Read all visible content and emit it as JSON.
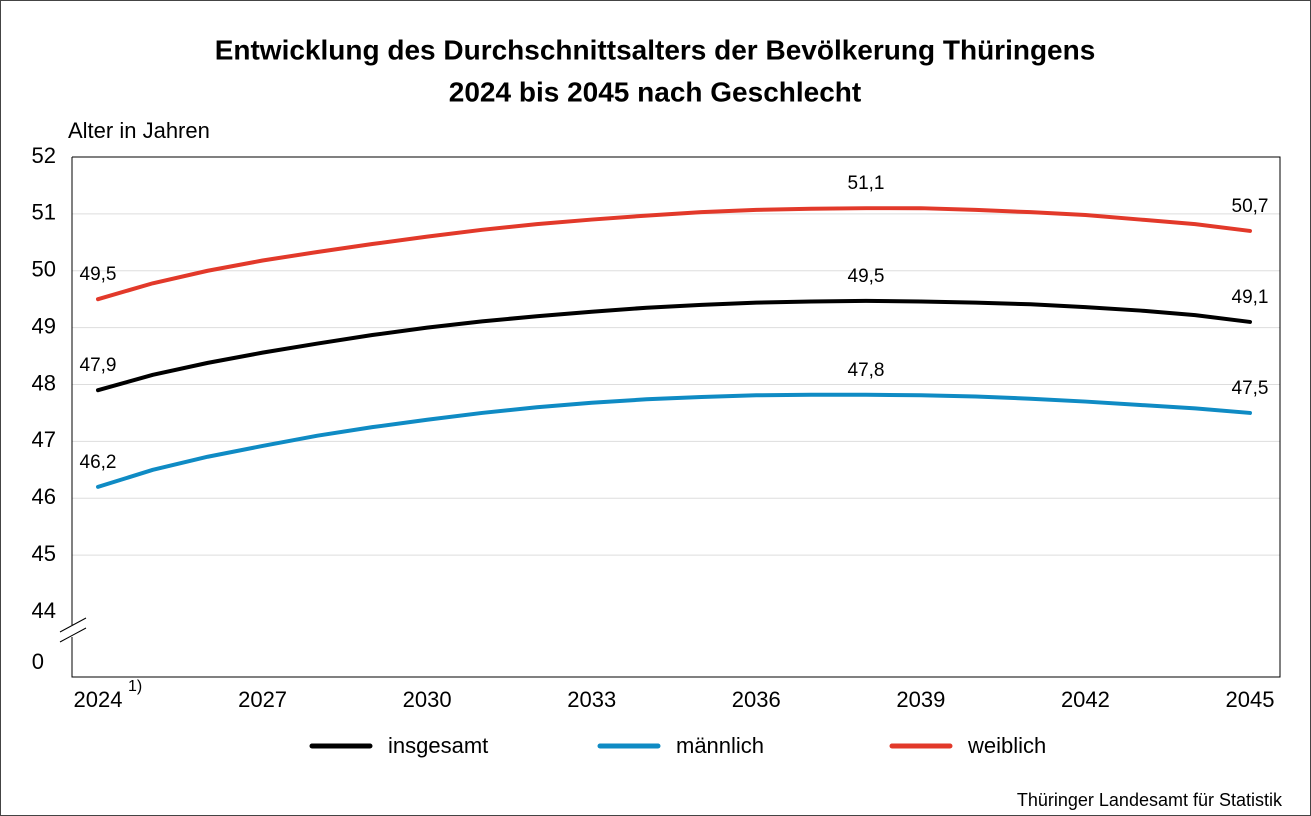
{
  "chart_data": {
    "type": "line",
    "title": [
      "Entwicklung des Durchschnittsalters der Bevölkerung Thüringens",
      "2024 bis 2045 nach Geschlecht"
    ],
    "y_axis_label": "Alter in Jahren",
    "x": [
      2024,
      2025,
      2026,
      2027,
      2028,
      2029,
      2030,
      2031,
      2032,
      2033,
      2034,
      2035,
      2036,
      2037,
      2038,
      2039,
      2040,
      2041,
      2042,
      2043,
      2044,
      2045
    ],
    "series": [
      {
        "name": "insgesamt",
        "color": "#000000",
        "values": [
          47.9,
          48.17,
          48.38,
          48.56,
          48.72,
          48.87,
          49.0,
          49.11,
          49.2,
          49.28,
          49.35,
          49.4,
          49.44,
          49.46,
          49.47,
          49.46,
          49.44,
          49.41,
          49.36,
          49.3,
          49.22,
          49.1
        ],
        "value_labels": [
          "47,9",
          null,
          null,
          null,
          null,
          null,
          null,
          null,
          null,
          null,
          null,
          null,
          null,
          null,
          "49,5",
          null,
          null,
          null,
          null,
          null,
          null,
          "49,1"
        ]
      },
      {
        "name": "männlich",
        "color": "#0f8bc4",
        "values": [
          46.2,
          46.5,
          46.73,
          46.92,
          47.1,
          47.25,
          47.38,
          47.5,
          47.6,
          47.68,
          47.74,
          47.78,
          47.81,
          47.82,
          47.82,
          47.81,
          47.79,
          47.75,
          47.7,
          47.64,
          47.58,
          47.5
        ],
        "value_labels": [
          "46,2",
          null,
          null,
          null,
          null,
          null,
          null,
          null,
          null,
          null,
          null,
          null,
          null,
          null,
          "47,8",
          null,
          null,
          null,
          null,
          null,
          null,
          "47,5"
        ]
      },
      {
        "name": "weiblich",
        "color": "#e2392a",
        "values": [
          49.5,
          49.78,
          50.0,
          50.18,
          50.33,
          50.47,
          50.6,
          50.72,
          50.82,
          50.9,
          50.97,
          51.03,
          51.07,
          51.09,
          51.1,
          51.1,
          51.07,
          51.03,
          50.98,
          50.9,
          50.82,
          50.7
        ],
        "value_labels": [
          "49,5",
          null,
          null,
          null,
          null,
          null,
          null,
          null,
          null,
          null,
          null,
          null,
          null,
          null,
          "51,1",
          null,
          null,
          null,
          null,
          null,
          null,
          "50,7"
        ]
      }
    ],
    "xlim": [
      2024,
      2045
    ],
    "xticks": [
      2024,
      2027,
      2030,
      2033,
      2036,
      2039,
      2042,
      2045
    ],
    "xtick_note": "1)",
    "ylim": [
      44,
      52
    ],
    "yticks": [
      44,
      45,
      46,
      47,
      48,
      49,
      50,
      51,
      52
    ],
    "y_break_tick": 0,
    "grid": true,
    "legend": "bottom",
    "source": "Thüringer Landesamt für Statistik"
  }
}
